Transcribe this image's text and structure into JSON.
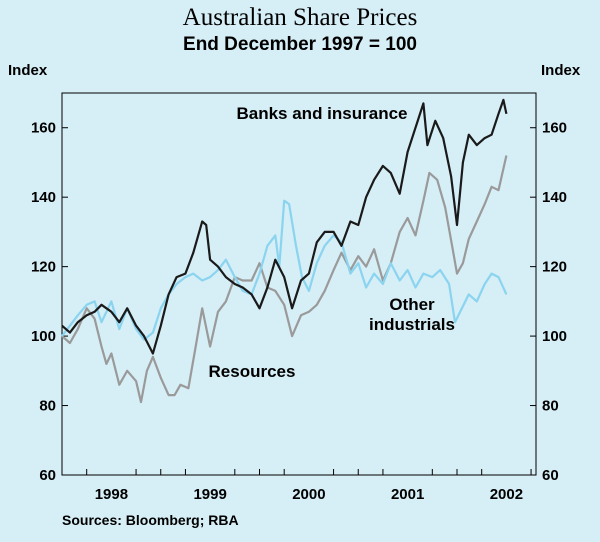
{
  "chart_data": {
    "type": "line",
    "title": "Australian Share Prices",
    "subtitle": "End December 1997 = 100",
    "ylabel_left": "Index",
    "ylabel_right": "Index",
    "ylim": [
      60,
      170
    ],
    "yticks": [
      60,
      80,
      100,
      120,
      140,
      160
    ],
    "xlim": [
      1997.5,
      2002.3
    ],
    "xticks": [
      {
        "label": "1998",
        "pos": 1998.0
      },
      {
        "label": "1999",
        "pos": 1999.0
      },
      {
        "label": "2000",
        "pos": 2000.0
      },
      {
        "label": "2001",
        "pos": 2001.0
      },
      {
        "label": "2002",
        "pos": 2002.0
      }
    ],
    "source": "Sources: Bloomberg; RBA",
    "series": [
      {
        "name": "Banks and insurance",
        "label_lines": [
          "Banks and insurance"
        ],
        "color": "#1a1a1a",
        "points": [
          [
            1997.5,
            103
          ],
          [
            1997.58,
            101
          ],
          [
            1997.66,
            104
          ],
          [
            1997.75,
            106
          ],
          [
            1997.83,
            107
          ],
          [
            1997.9,
            109
          ],
          [
            1998.0,
            107
          ],
          [
            1998.08,
            104
          ],
          [
            1998.16,
            108
          ],
          [
            1998.25,
            103
          ],
          [
            1998.33,
            100
          ],
          [
            1998.42,
            95
          ],
          [
            1998.5,
            103
          ],
          [
            1998.58,
            112
          ],
          [
            1998.66,
            117
          ],
          [
            1998.75,
            118
          ],
          [
            1998.83,
            124
          ],
          [
            1998.92,
            133
          ],
          [
            1998.96,
            132
          ],
          [
            1999.0,
            122
          ],
          [
            1999.08,
            120
          ],
          [
            1999.16,
            117
          ],
          [
            1999.25,
            115
          ],
          [
            1999.33,
            114
          ],
          [
            1999.42,
            112
          ],
          [
            1999.5,
            108
          ],
          [
            1999.58,
            114
          ],
          [
            1999.66,
            122
          ],
          [
            1999.75,
            117
          ],
          [
            1999.83,
            108
          ],
          [
            1999.92,
            116
          ],
          [
            2000.0,
            118
          ],
          [
            2000.08,
            127
          ],
          [
            2000.16,
            130
          ],
          [
            2000.25,
            130
          ],
          [
            2000.33,
            126
          ],
          [
            2000.42,
            133
          ],
          [
            2000.5,
            132
          ],
          [
            2000.58,
            140
          ],
          [
            2000.66,
            145
          ],
          [
            2000.75,
            149
          ],
          [
            2000.83,
            147
          ],
          [
            2000.92,
            141
          ],
          [
            2001.0,
            153
          ],
          [
            2001.08,
            160
          ],
          [
            2001.16,
            167
          ],
          [
            2001.2,
            155
          ],
          [
            2001.28,
            162
          ],
          [
            2001.36,
            157
          ],
          [
            2001.44,
            146
          ],
          [
            2001.5,
            132
          ],
          [
            2001.56,
            150
          ],
          [
            2001.62,
            158
          ],
          [
            2001.7,
            155
          ],
          [
            2001.78,
            157
          ],
          [
            2001.85,
            158
          ],
          [
            2001.92,
            164
          ],
          [
            2001.97,
            168
          ],
          [
            2002.0,
            164
          ]
        ]
      },
      {
        "name": "Other industrials",
        "label_lines": [
          "Other",
          "industrials"
        ],
        "color": "#8ad4f0",
        "points": [
          [
            1997.5,
            100
          ],
          [
            1997.58,
            103
          ],
          [
            1997.66,
            106
          ],
          [
            1997.75,
            109
          ],
          [
            1997.83,
            110
          ],
          [
            1997.9,
            104
          ],
          [
            1998.0,
            110
          ],
          [
            1998.08,
            102
          ],
          [
            1998.16,
            108
          ],
          [
            1998.25,
            102
          ],
          [
            1998.33,
            99
          ],
          [
            1998.42,
            101
          ],
          [
            1998.5,
            108
          ],
          [
            1998.58,
            112
          ],
          [
            1998.66,
            115
          ],
          [
            1998.75,
            117
          ],
          [
            1998.83,
            118
          ],
          [
            1998.92,
            116
          ],
          [
            1999.0,
            117
          ],
          [
            1999.08,
            119
          ],
          [
            1999.16,
            122
          ],
          [
            1999.25,
            117
          ],
          [
            1999.33,
            113
          ],
          [
            1999.42,
            112
          ],
          [
            1999.5,
            118
          ],
          [
            1999.58,
            126
          ],
          [
            1999.66,
            129
          ],
          [
            1999.7,
            120
          ],
          [
            1999.75,
            139
          ],
          [
            1999.8,
            138
          ],
          [
            1999.87,
            126
          ],
          [
            1999.93,
            117
          ],
          [
            2000.0,
            113
          ],
          [
            2000.08,
            121
          ],
          [
            2000.16,
            126
          ],
          [
            2000.25,
            129
          ],
          [
            2000.33,
            127
          ],
          [
            2000.42,
            118
          ],
          [
            2000.5,
            121
          ],
          [
            2000.58,
            114
          ],
          [
            2000.66,
            118
          ],
          [
            2000.75,
            115
          ],
          [
            2000.83,
            121
          ],
          [
            2000.92,
            116
          ],
          [
            2001.0,
            119
          ],
          [
            2001.08,
            114
          ],
          [
            2001.16,
            118
          ],
          [
            2001.25,
            117
          ],
          [
            2001.33,
            119
          ],
          [
            2001.42,
            115
          ],
          [
            2001.48,
            104
          ],
          [
            2001.55,
            108
          ],
          [
            2001.62,
            112
          ],
          [
            2001.7,
            110
          ],
          [
            2001.78,
            115
          ],
          [
            2001.85,
            118
          ],
          [
            2001.92,
            117
          ],
          [
            2002.0,
            112
          ]
        ]
      },
      {
        "name": "Resources",
        "label_lines": [
          "Resources"
        ],
        "color": "#9a9a9a",
        "points": [
          [
            1997.5,
            100
          ],
          [
            1997.58,
            98
          ],
          [
            1997.66,
            102
          ],
          [
            1997.75,
            108
          ],
          [
            1997.83,
            105
          ],
          [
            1997.9,
            97
          ],
          [
            1997.95,
            92
          ],
          [
            1998.0,
            95
          ],
          [
            1998.08,
            86
          ],
          [
            1998.16,
            90
          ],
          [
            1998.25,
            87
          ],
          [
            1998.3,
            81
          ],
          [
            1998.36,
            90
          ],
          [
            1998.42,
            94
          ],
          [
            1998.5,
            88
          ],
          [
            1998.58,
            83
          ],
          [
            1998.64,
            83
          ],
          [
            1998.7,
            86
          ],
          [
            1998.78,
            85
          ],
          [
            1998.86,
            98
          ],
          [
            1998.92,
            108
          ],
          [
            1999.0,
            97
          ],
          [
            1999.08,
            107
          ],
          [
            1999.16,
            110
          ],
          [
            1999.25,
            117
          ],
          [
            1999.33,
            116
          ],
          [
            1999.42,
            116
          ],
          [
            1999.5,
            121
          ],
          [
            1999.58,
            114
          ],
          [
            1999.66,
            113
          ],
          [
            1999.75,
            109
          ],
          [
            1999.83,
            100
          ],
          [
            1999.92,
            106
          ],
          [
            2000.0,
            107
          ],
          [
            2000.08,
            109
          ],
          [
            2000.16,
            113
          ],
          [
            2000.25,
            119
          ],
          [
            2000.33,
            124
          ],
          [
            2000.42,
            119
          ],
          [
            2000.5,
            123
          ],
          [
            2000.58,
            120
          ],
          [
            2000.66,
            125
          ],
          [
            2000.75,
            116
          ],
          [
            2000.83,
            121
          ],
          [
            2000.92,
            130
          ],
          [
            2001.0,
            134
          ],
          [
            2001.08,
            129
          ],
          [
            2001.16,
            139
          ],
          [
            2001.22,
            147
          ],
          [
            2001.3,
            145
          ],
          [
            2001.38,
            137
          ],
          [
            2001.45,
            126
          ],
          [
            2001.5,
            118
          ],
          [
            2001.56,
            121
          ],
          [
            2001.62,
            128
          ],
          [
            2001.7,
            133
          ],
          [
            2001.78,
            138
          ],
          [
            2001.85,
            143
          ],
          [
            2001.92,
            142
          ],
          [
            2002.0,
            152
          ]
        ]
      }
    ]
  }
}
